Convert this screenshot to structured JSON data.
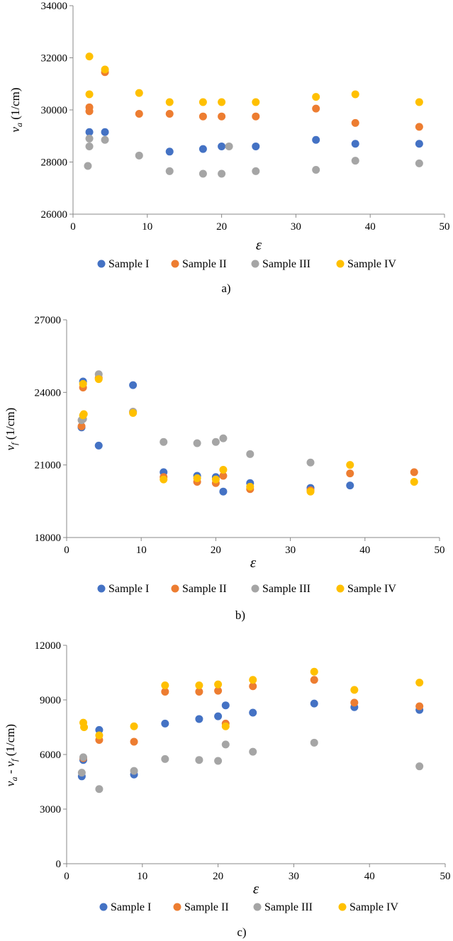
{
  "figure": {
    "legend_labels": [
      "Sample I",
      "Sample II",
      "Sample III",
      "Sample IV"
    ],
    "series_colors": [
      "#4472C4",
      "#ED7D31",
      "#A5A5A5",
      "#FFC000"
    ]
  },
  "chart_data": [
    {
      "type": "scatter",
      "caption": "a)",
      "xlabel": "ε",
      "ylabel_main": "v",
      "ylabel_sub": "a",
      "ylabel_rest": " (1/cm)",
      "xlim": [
        0,
        50
      ],
      "ylim": [
        26000,
        34000
      ],
      "xticks": [
        0,
        10,
        20,
        30,
        40,
        50
      ],
      "yticks": [
        26000,
        28000,
        30000,
        32000,
        34000
      ],
      "legend_position": "bottom",
      "series": [
        {
          "name": "Sample I",
          "x": [
            2.2,
            4.3,
            13,
            17.5,
            20,
            24.6,
            32.7,
            38,
            46.6
          ],
          "y": [
            29150,
            29150,
            28400,
            28500,
            28600,
            28600,
            28850,
            28700,
            28700
          ]
        },
        {
          "name": "Sample II",
          "x": [
            2.2,
            2.2,
            4.3,
            8.9,
            13,
            17.5,
            20,
            24.6,
            32.7,
            38,
            46.6
          ],
          "y": [
            30100,
            29950,
            31450,
            29850,
            29850,
            29750,
            29750,
            29750,
            30050,
            29500,
            29350
          ]
        },
        {
          "name": "Sample III",
          "x": [
            2.0,
            2.2,
            2.2,
            4.3,
            8.9,
            13,
            17.5,
            20,
            21,
            24.6,
            32.7,
            38,
            46.6
          ],
          "y": [
            27850,
            28600,
            28900,
            28850,
            28250,
            27650,
            27550,
            27550,
            28600,
            27650,
            27700,
            28050,
            27950
          ]
        },
        {
          "name": "Sample IV",
          "x": [
            2.2,
            2.2,
            4.3,
            8.9,
            13,
            17.5,
            20,
            24.6,
            32.7,
            38,
            46.6
          ],
          "y": [
            32050,
            30600,
            31550,
            30650,
            30300,
            30300,
            30300,
            30300,
            30500,
            30600,
            30300
          ]
        }
      ]
    },
    {
      "type": "scatter",
      "caption": "b)",
      "xlabel": "ε",
      "ylabel_main": "v",
      "ylabel_sub": "f",
      "ylabel_rest": " (1/cm)",
      "xlim": [
        0,
        50
      ],
      "ylim": [
        18000,
        27000
      ],
      "xticks": [
        0,
        10,
        20,
        30,
        40,
        50
      ],
      "yticks": [
        18000,
        21000,
        24000,
        27000
      ],
      "legend_position": "bottom",
      "series": [
        {
          "name": "Sample I",
          "x": [
            2.0,
            2.2,
            4.3,
            8.9,
            13,
            17.5,
            20,
            21,
            24.6,
            32.7,
            38
          ],
          "y": [
            22550,
            24450,
            21800,
            24300,
            20700,
            20550,
            20500,
            19900,
            20250,
            20050,
            20150
          ]
        },
        {
          "name": "Sample II",
          "x": [
            2.0,
            2.2,
            4.3,
            8.9,
            13,
            17.5,
            20,
            21,
            24.6,
            32.7,
            38,
            46.6
          ],
          "y": [
            22600,
            24200,
            24600,
            23200,
            20500,
            20300,
            20250,
            20550,
            20000,
            19950,
            20650,
            20700
          ]
        },
        {
          "name": "Sample III",
          "x": [
            2.0,
            2.2,
            4.3,
            8.9,
            13,
            17.5,
            20,
            21,
            24.6,
            32.7
          ],
          "y": [
            22850,
            22900,
            24750,
            23200,
            21950,
            21900,
            21950,
            22100,
            21450,
            21100
          ]
        },
        {
          "name": "Sample IV",
          "x": [
            2.2,
            2.2,
            2.3,
            4.3,
            8.9,
            13,
            17.5,
            20,
            21,
            24.6,
            32.7,
            38,
            46.6
          ],
          "y": [
            24350,
            23050,
            23100,
            24550,
            23150,
            20400,
            20450,
            20400,
            20800,
            20100,
            19900,
            21000,
            20300
          ]
        }
      ]
    },
    {
      "type": "scatter",
      "caption": "c)",
      "xlabel": "ε",
      "ylabel_main": "v",
      "ylabel_sub": "a",
      "ylabel_mid": " - v",
      "ylabel_sub2": "f",
      "ylabel_rest": " (1/cm)",
      "xlim": [
        0,
        50
      ],
      "ylim": [
        0,
        12000
      ],
      "xticks": [
        0,
        10,
        20,
        30,
        40,
        50
      ],
      "yticks": [
        0,
        3000,
        6000,
        9000,
        12000
      ],
      "legend_position": "bottom",
      "series": [
        {
          "name": "Sample I",
          "x": [
            2.0,
            2.2,
            4.3,
            8.9,
            13,
            17.5,
            20,
            21,
            24.6,
            32.7,
            38,
            46.6
          ],
          "y": [
            4800,
            5700,
            7350,
            4900,
            7700,
            7950,
            8100,
            8700,
            8300,
            8800,
            8600,
            8450
          ]
        },
        {
          "name": "Sample II",
          "x": [
            2.2,
            4.3,
            8.9,
            13,
            17.5,
            20,
            21,
            24.6,
            32.7,
            38,
            46.6
          ],
          "y": [
            5800,
            6800,
            6700,
            9450,
            9450,
            9500,
            7700,
            9750,
            10100,
            8850,
            8650
          ]
        },
        {
          "name": "Sample III",
          "x": [
            2.0,
            2.2,
            4.3,
            8.9,
            13,
            17.5,
            20,
            21,
            24.6,
            32.7,
            46.6
          ],
          "y": [
            5000,
            5850,
            4100,
            5100,
            5750,
            5700,
            5650,
            6550,
            6150,
            6650,
            5350
          ]
        },
        {
          "name": "Sample IV",
          "x": [
            2.2,
            2.3,
            4.3,
            8.9,
            13,
            17.5,
            20,
            21,
            24.6,
            32.7,
            38,
            46.6
          ],
          "y": [
            7750,
            7500,
            7050,
            7550,
            9800,
            9800,
            9850,
            7550,
            10100,
            10550,
            9550,
            9950
          ]
        }
      ]
    }
  ]
}
